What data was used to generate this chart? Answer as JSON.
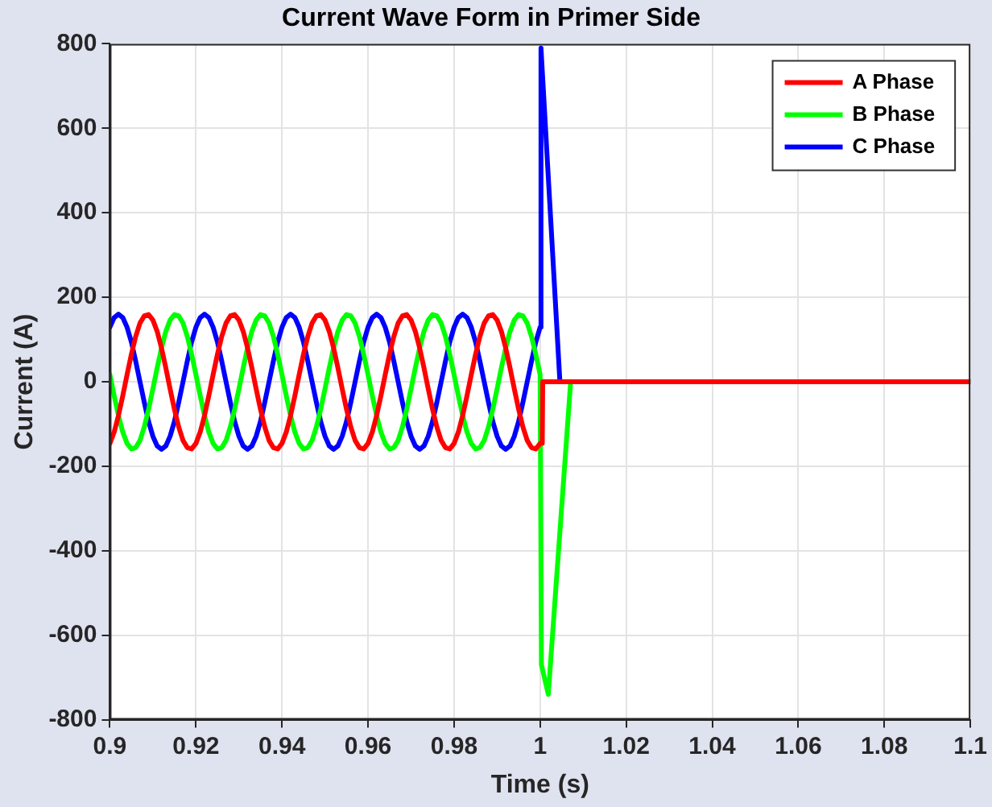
{
  "chart_data": {
    "type": "line",
    "title": "Current Wave Form in Primer Side",
    "xlabel": "Time (s)",
    "ylabel": "Current (A)",
    "xlim": [
      0.9,
      1.1
    ],
    "xticks": [
      0.9,
      0.92,
      0.94,
      0.96,
      0.98,
      1,
      1.02,
      1.04,
      1.06,
      1.08,
      1.1
    ],
    "ylim": [
      -800,
      800
    ],
    "yticks": [
      -800,
      -600,
      -400,
      -200,
      0,
      200,
      400,
      600,
      800
    ],
    "grid": true,
    "legend": "top right",
    "marker": "none",
    "line_style": "solid",
    "series": [
      {
        "name": "A Phase",
        "color": "#ff0000",
        "x": [
          0.9,
          0.901,
          0.902,
          0.903,
          0.904,
          0.905,
          0.906,
          0.907,
          0.908,
          0.909,
          0.91,
          0.911,
          0.912,
          0.913,
          0.914,
          0.915,
          0.916,
          0.917,
          0.918,
          0.919,
          0.92,
          0.921,
          0.922,
          0.923,
          0.924,
          0.925,
          0.926,
          0.927,
          0.928,
          0.929,
          0.93,
          0.931,
          0.932,
          0.933,
          0.934,
          0.935,
          0.936,
          0.937,
          0.938,
          0.939,
          0.94,
          0.941,
          0.942,
          0.943,
          0.944,
          0.945,
          0.946,
          0.947,
          0.948,
          0.949,
          0.95,
          0.951,
          0.952,
          0.953,
          0.954,
          0.955,
          0.956,
          0.957,
          0.958,
          0.959,
          0.96,
          0.961,
          0.962,
          0.963,
          0.964,
          0.965,
          0.966,
          0.967,
          0.968,
          0.969,
          0.97,
          0.971,
          0.972,
          0.973,
          0.974,
          0.975,
          0.976,
          0.977,
          0.978,
          0.979,
          0.98,
          0.981,
          0.982,
          0.983,
          0.984,
          0.985,
          0.986,
          0.987,
          0.988,
          0.989,
          0.99,
          0.991,
          0.992,
          0.993,
          0.994,
          0.995,
          0.996,
          0.997,
          0.998,
          0.999,
          1.0,
          1.0005,
          1.0006,
          1.1
        ],
        "values": [
          -146,
          -119,
          -80,
          -33,
          17,
          65,
          107,
          139,
          156,
          159,
          146,
          119,
          80,
          33,
          -17,
          -65,
          -107,
          -139,
          -156,
          -159,
          -146,
          -119,
          -80,
          -33,
          17,
          65,
          107,
          139,
          156,
          159,
          146,
          119,
          80,
          33,
          -17,
          -65,
          -107,
          -139,
          -156,
          -159,
          -146,
          -119,
          -80,
          -33,
          17,
          65,
          107,
          139,
          156,
          159,
          146,
          119,
          80,
          33,
          -17,
          -65,
          -107,
          -139,
          -156,
          -159,
          -146,
          -119,
          -80,
          -33,
          17,
          65,
          107,
          139,
          156,
          159,
          146,
          119,
          80,
          33,
          -17,
          -65,
          -107,
          -139,
          -156,
          -159,
          -146,
          -119,
          -80,
          -33,
          17,
          65,
          107,
          139,
          156,
          159,
          146,
          119,
          80,
          33,
          -17,
          -65,
          -107,
          -139,
          -156,
          -159,
          -146,
          -146,
          0,
          0
        ]
      },
      {
        "name": "B Phase",
        "color": "#00ff00",
        "x": [
          0.9,
          0.901,
          0.902,
          0.903,
          0.904,
          0.905,
          0.906,
          0.907,
          0.908,
          0.909,
          0.91,
          0.911,
          0.912,
          0.913,
          0.914,
          0.915,
          0.916,
          0.917,
          0.918,
          0.919,
          0.92,
          0.921,
          0.922,
          0.923,
          0.924,
          0.925,
          0.926,
          0.927,
          0.928,
          0.929,
          0.93,
          0.931,
          0.932,
          0.933,
          0.934,
          0.935,
          0.936,
          0.937,
          0.938,
          0.939,
          0.94,
          0.941,
          0.942,
          0.943,
          0.944,
          0.945,
          0.946,
          0.947,
          0.948,
          0.949,
          0.95,
          0.951,
          0.952,
          0.953,
          0.954,
          0.955,
          0.956,
          0.957,
          0.958,
          0.959,
          0.96,
          0.961,
          0.962,
          0.963,
          0.964,
          0.965,
          0.966,
          0.967,
          0.968,
          0.969,
          0.97,
          0.971,
          0.972,
          0.973,
          0.974,
          0.975,
          0.976,
          0.977,
          0.978,
          0.979,
          0.98,
          0.981,
          0.982,
          0.983,
          0.984,
          0.985,
          0.986,
          0.987,
          0.988,
          0.989,
          0.99,
          0.991,
          0.992,
          0.993,
          0.994,
          0.995,
          0.996,
          0.997,
          0.998,
          0.999,
          1.0,
          1.0003,
          1.0019,
          1.004,
          1.0071,
          1.1
        ],
        "values": [
          17,
          -33,
          -80,
          -119,
          -146,
          -159,
          -156,
          -139,
          -107,
          -65,
          -17,
          33,
          80,
          119,
          146,
          159,
          156,
          139,
          107,
          65,
          17,
          -33,
          -80,
          -119,
          -146,
          -159,
          -156,
          -139,
          -107,
          -65,
          -17,
          33,
          80,
          119,
          146,
          159,
          156,
          139,
          107,
          65,
          17,
          -33,
          -80,
          -119,
          -146,
          -159,
          -156,
          -139,
          -107,
          -65,
          -17,
          33,
          80,
          119,
          146,
          159,
          156,
          139,
          107,
          65,
          17,
          -33,
          -80,
          -119,
          -146,
          -159,
          -156,
          -139,
          -107,
          -65,
          -17,
          33,
          80,
          119,
          146,
          159,
          156,
          139,
          107,
          65,
          17,
          -33,
          -80,
          -119,
          -146,
          -159,
          -156,
          -139,
          -107,
          -65,
          -17,
          33,
          80,
          119,
          146,
          159,
          156,
          139,
          107,
          65,
          17,
          -670,
          -740,
          -440,
          0,
          0
        ]
      },
      {
        "name": "C Phase",
        "color": "#0000ff",
        "x": [
          0.9,
          0.901,
          0.902,
          0.903,
          0.904,
          0.905,
          0.906,
          0.907,
          0.908,
          0.909,
          0.91,
          0.911,
          0.912,
          0.913,
          0.914,
          0.915,
          0.916,
          0.917,
          0.918,
          0.919,
          0.92,
          0.921,
          0.922,
          0.923,
          0.924,
          0.925,
          0.926,
          0.927,
          0.928,
          0.929,
          0.93,
          0.931,
          0.932,
          0.933,
          0.934,
          0.935,
          0.936,
          0.937,
          0.938,
          0.939,
          0.94,
          0.941,
          0.942,
          0.943,
          0.944,
          0.945,
          0.946,
          0.947,
          0.948,
          0.949,
          0.95,
          0.951,
          0.952,
          0.953,
          0.954,
          0.955,
          0.956,
          0.957,
          0.958,
          0.959,
          0.96,
          0.961,
          0.962,
          0.963,
          0.964,
          0.965,
          0.966,
          0.967,
          0.968,
          0.969,
          0.97,
          0.971,
          0.972,
          0.973,
          0.974,
          0.975,
          0.976,
          0.977,
          0.978,
          0.979,
          0.98,
          0.981,
          0.982,
          0.983,
          0.984,
          0.985,
          0.986,
          0.987,
          0.988,
          0.989,
          0.99,
          0.991,
          0.992,
          0.993,
          0.994,
          0.995,
          0.996,
          0.997,
          0.998,
          0.999,
          1.0,
          1.0002,
          1.0046,
          1.1
        ],
        "values": [
          129,
          152,
          160,
          152,
          129,
          94,
          49,
          0,
          -49,
          -94,
          -129,
          -152,
          -160,
          -152,
          -129,
          -94,
          -49,
          0,
          49,
          94,
          129,
          152,
          160,
          152,
          129,
          94,
          49,
          0,
          -49,
          -94,
          -129,
          -152,
          -160,
          -152,
          -129,
          -94,
          -49,
          0,
          49,
          94,
          129,
          152,
          160,
          152,
          129,
          94,
          49,
          0,
          -49,
          -94,
          -129,
          -152,
          -160,
          -152,
          -129,
          -94,
          -49,
          0,
          49,
          94,
          129,
          152,
          160,
          152,
          129,
          94,
          49,
          0,
          -49,
          -94,
          -129,
          -152,
          -160,
          -152,
          -129,
          -94,
          -49,
          0,
          49,
          94,
          129,
          152,
          160,
          152,
          129,
          94,
          49,
          0,
          -49,
          -94,
          -129,
          -152,
          -160,
          -152,
          -129,
          -94,
          -49,
          0,
          49,
          94,
          129,
          790,
          0,
          0
        ]
      }
    ]
  }
}
